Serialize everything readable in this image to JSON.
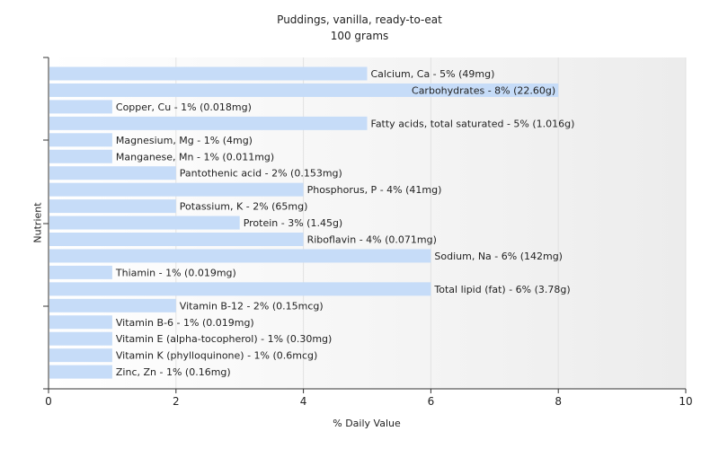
{
  "chart_data": {
    "type": "bar",
    "orientation": "horizontal",
    "title": "Puddings, vanilla, ready-to-eat",
    "subtitle": "100 grams",
    "xlabel": "% Daily Value",
    "ylabel": "Nutrient",
    "xlim": [
      0,
      10
    ],
    "x_ticks": [
      0,
      2,
      4,
      6,
      8,
      10
    ],
    "grid": true,
    "bar_color": "#c6dcf8",
    "categories": [
      "Calcium, Ca - 5% (49mg)",
      "Carbohydrates - 8% (22.60g)",
      "Copper, Cu - 1% (0.018mg)",
      "Fatty acids, total saturated - 5% (1.016g)",
      "Magnesium, Mg - 1% (4mg)",
      "Manganese, Mn - 1% (0.011mg)",
      "Pantothenic acid - 2% (0.153mg)",
      "Phosphorus, P - 4% (41mg)",
      "Potassium, K - 2% (65mg)",
      "Protein - 3% (1.45g)",
      "Riboflavin - 4% (0.071mg)",
      "Sodium, Na - 6% (142mg)",
      "Thiamin - 1% (0.019mg)",
      "Total lipid (fat) - 6% (3.78g)",
      "Vitamin B-12 - 2% (0.15mcg)",
      "Vitamin B-6 - 1% (0.019mg)",
      "Vitamin E (alpha-tocopherol) - 1% (0.30mg)",
      "Vitamin K (phylloquinone) - 1% (0.6mcg)",
      "Zinc, Zn - 1% (0.16mg)"
    ],
    "values": [
      5,
      8,
      1,
      5,
      1,
      1,
      2,
      4,
      2,
      3,
      4,
      6,
      1,
      6,
      2,
      1,
      1,
      1,
      1
    ]
  }
}
